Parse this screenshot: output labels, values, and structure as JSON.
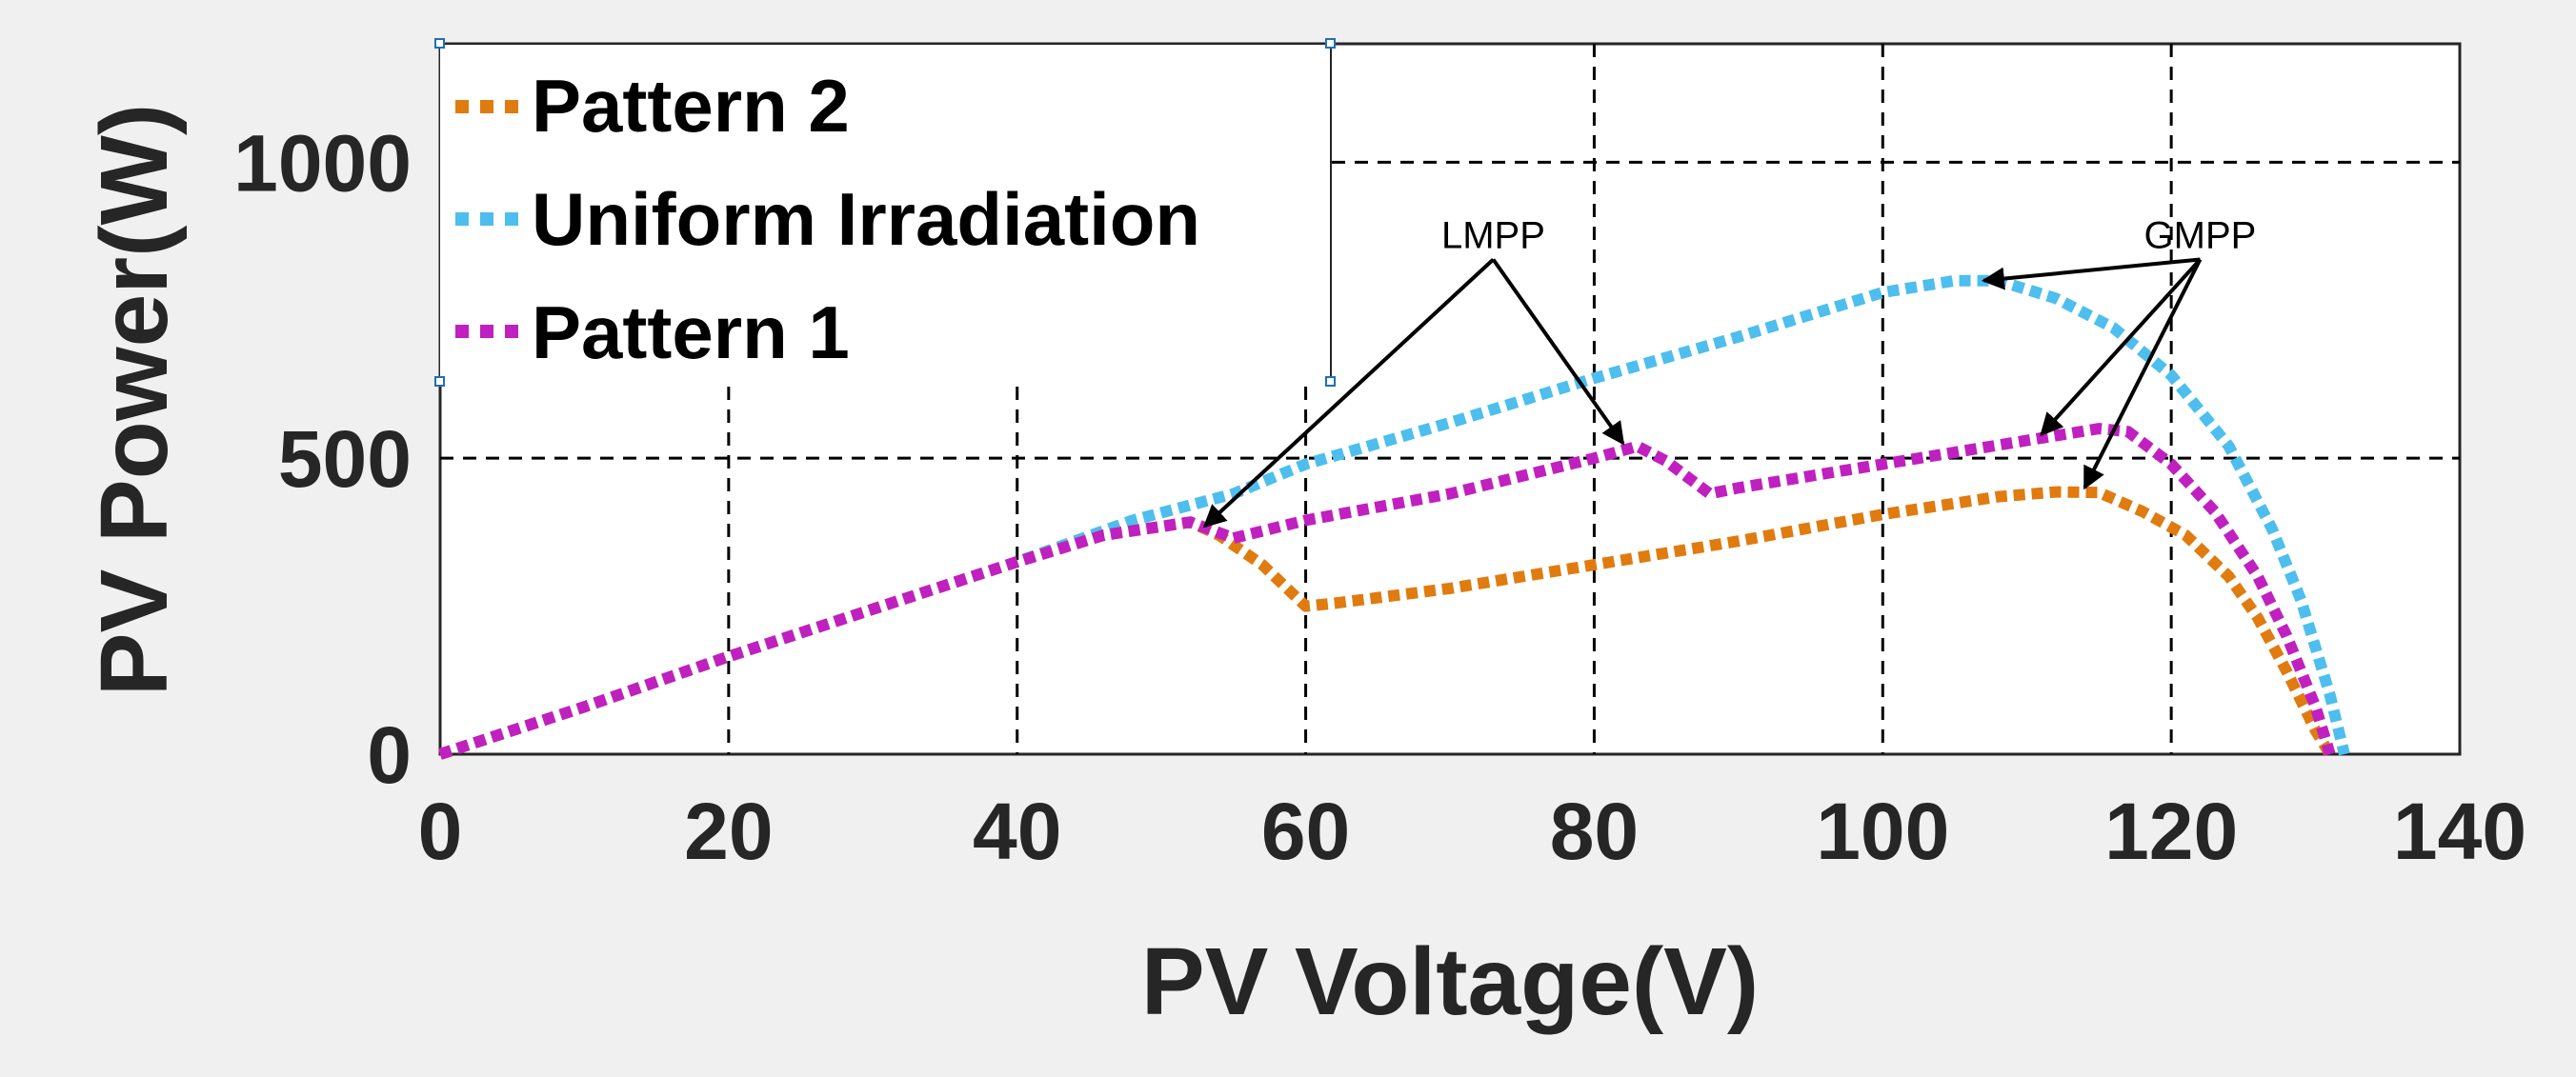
{
  "chart_data": {
    "type": "line",
    "title": "",
    "xlabel": "PV Voltage(V)",
    "ylabel": "PV Power(W)",
    "xlim": [
      0,
      140
    ],
    "ylim": [
      0,
      1200
    ],
    "xticks": [
      0,
      20,
      40,
      60,
      80,
      100,
      120,
      140
    ],
    "yticks": [
      0,
      500,
      1000
    ],
    "grid": true,
    "legend_position": "top-left",
    "series": [
      {
        "name": "Pattern 2",
        "color": "#e07b10",
        "points": [
          [
            0,
            0
          ],
          [
            10,
            80
          ],
          [
            20,
            165
          ],
          [
            30,
            245
          ],
          [
            40,
            325
          ],
          [
            46,
            370
          ],
          [
            52,
            392
          ],
          [
            54,
            370
          ],
          [
            57,
            320
          ],
          [
            60,
            250
          ],
          [
            62,
            255
          ],
          [
            70,
            280
          ],
          [
            80,
            320
          ],
          [
            90,
            360
          ],
          [
            100,
            405
          ],
          [
            108,
            435
          ],
          [
            112,
            443
          ],
          [
            115,
            442
          ],
          [
            118,
            410
          ],
          [
            121,
            370
          ],
          [
            124,
            300
          ],
          [
            126,
            230
          ],
          [
            128,
            140
          ],
          [
            130,
            40
          ],
          [
            131,
            0
          ]
        ]
      },
      {
        "name": "Uniform Irradiation",
        "color": "#4dbeee",
        "points": [
          [
            0,
            0
          ],
          [
            10,
            80
          ],
          [
            20,
            165
          ],
          [
            30,
            245
          ],
          [
            40,
            325
          ],
          [
            48,
            395
          ],
          [
            55,
            440
          ],
          [
            60,
            490
          ],
          [
            70,
            560
          ],
          [
            80,
            635
          ],
          [
            90,
            705
          ],
          [
            100,
            780
          ],
          [
            105,
            800
          ],
          [
            108,
            800
          ],
          [
            112,
            770
          ],
          [
            116,
            720
          ],
          [
            120,
            640
          ],
          [
            124,
            520
          ],
          [
            127,
            380
          ],
          [
            129,
            260
          ],
          [
            131,
            100
          ],
          [
            132,
            0
          ]
        ]
      },
      {
        "name": "Pattern 1",
        "color": "#c020c0",
        "points": [
          [
            0,
            0
          ],
          [
            10,
            80
          ],
          [
            20,
            165
          ],
          [
            30,
            245
          ],
          [
            40,
            325
          ],
          [
            46,
            370
          ],
          [
            52,
            392
          ],
          [
            55,
            365
          ],
          [
            60,
            395
          ],
          [
            70,
            440
          ],
          [
            80,
            500
          ],
          [
            83,
            520
          ],
          [
            85,
            495
          ],
          [
            88,
            440
          ],
          [
            90,
            450
          ],
          [
            100,
            490
          ],
          [
            110,
            530
          ],
          [
            115,
            550
          ],
          [
            117,
            545
          ],
          [
            120,
            490
          ],
          [
            123,
            410
          ],
          [
            126,
            300
          ],
          [
            128,
            200
          ],
          [
            130,
            80
          ],
          [
            131,
            0
          ]
        ]
      }
    ],
    "annotations": [
      {
        "label": "LMPP",
        "text_at": [
          73,
          855
        ],
        "arrow_tips": [
          [
            53,
            385
          ],
          [
            82,
            525
          ]
        ]
      },
      {
        "label": "GMPP",
        "text_at": [
          122,
          855
        ],
        "arrow_tips": [
          [
            107,
            800
          ],
          [
            111,
            540
          ],
          [
            114,
            450
          ]
        ]
      }
    ]
  }
}
